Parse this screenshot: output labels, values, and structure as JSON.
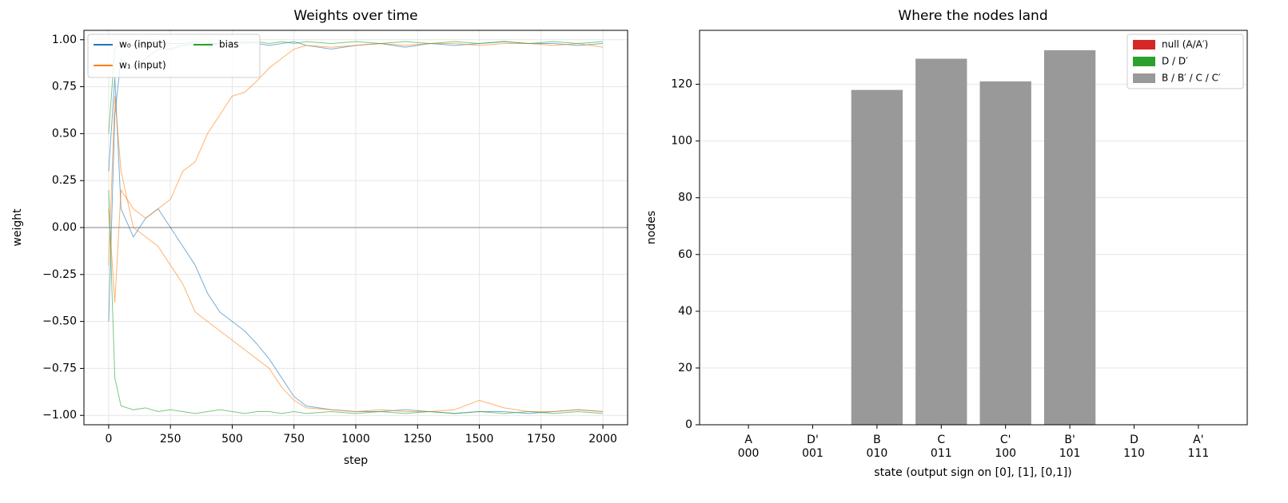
{
  "chart_data": [
    {
      "type": "line",
      "title": "Weights over time",
      "xlabel": "step",
      "ylabel": "weight",
      "x": [
        0,
        25,
        50,
        100,
        150,
        200,
        250,
        300,
        350,
        400,
        450,
        500,
        550,
        600,
        650,
        700,
        750,
        800,
        900,
        1000,
        1100,
        1200,
        1300,
        1400,
        1500,
        1600,
        1700,
        1800,
        1900,
        2000
      ],
      "series": [
        {
          "name": "w₀ (input)",
          "color": "#1f77b4",
          "values": [
            0.3,
            0.8,
            0.1,
            -0.05,
            0.05,
            0.1,
            0.0,
            -0.1,
            -0.2,
            -0.35,
            -0.45,
            -0.5,
            -0.55,
            -0.62,
            -0.7,
            -0.8,
            -0.9,
            -0.95,
            -0.97,
            -0.98,
            -0.98,
            -0.97,
            -0.98,
            -0.99,
            -0.98,
            -0.98,
            -0.99,
            -0.98,
            -0.97,
            -0.98
          ]
        },
        {
          "name": "w₀ (input)",
          "color": "#1f77b4",
          "values": [
            -0.5,
            0.6,
            0.9,
            0.85,
            0.9,
            0.95,
            0.95,
            0.97,
            0.98,
            0.97,
            0.98,
            0.98,
            0.99,
            0.98,
            0.97,
            0.98,
            0.99,
            0.97,
            0.95,
            0.97,
            0.98,
            0.96,
            0.98,
            0.97,
            0.98,
            0.99,
            0.98,
            0.98,
            0.97,
            0.98
          ]
        },
        {
          "name": "w₁ (input)",
          "color": "#ff7f0e",
          "values": [
            0.1,
            -0.4,
            0.2,
            0.1,
            0.05,
            0.1,
            0.15,
            0.3,
            0.35,
            0.5,
            0.6,
            0.7,
            0.72,
            0.78,
            0.85,
            0.9,
            0.95,
            0.97,
            0.96,
            0.97,
            0.98,
            0.97,
            0.98,
            0.98,
            0.97,
            0.98,
            0.98,
            0.97,
            0.98,
            0.96
          ]
        },
        {
          "name": "w₁ (input)",
          "color": "#ff7f0e",
          "values": [
            -0.2,
            0.7,
            0.3,
            0.0,
            -0.05,
            -0.1,
            -0.2,
            -0.3,
            -0.45,
            -0.5,
            -0.55,
            -0.6,
            -0.65,
            -0.7,
            -0.75,
            -0.85,
            -0.92,
            -0.96,
            -0.97,
            -0.98,
            -0.97,
            -0.98,
            -0.98,
            -0.97,
            -0.92,
            -0.96,
            -0.98,
            -0.98,
            -0.97,
            -0.98
          ]
        },
        {
          "name": "bias",
          "color": "#2ca02c",
          "values": [
            0.5,
            0.95,
            0.98,
            0.97,
            0.98,
            0.99,
            0.98,
            0.98,
            0.99,
            0.98,
            0.98,
            0.99,
            0.98,
            0.99,
            0.98,
            0.99,
            0.98,
            0.99,
            0.98,
            0.99,
            0.98,
            0.99,
            0.98,
            0.99,
            0.98,
            0.99,
            0.98,
            0.99,
            0.98,
            0.99
          ]
        },
        {
          "name": "bias",
          "color": "#2ca02c",
          "values": [
            0.2,
            -0.8,
            -0.95,
            -0.97,
            -0.96,
            -0.98,
            -0.97,
            -0.98,
            -0.99,
            -0.98,
            -0.97,
            -0.98,
            -0.99,
            -0.98,
            -0.98,
            -0.99,
            -0.98,
            -0.99,
            -0.98,
            -0.99,
            -0.98,
            -0.99,
            -0.98,
            -0.99,
            -0.98,
            -0.99,
            -0.98,
            -0.99,
            -0.98,
            -0.99
          ]
        }
      ],
      "hline": 0,
      "xlim": [
        -100,
        2100
      ],
      "xticks": [
        0,
        250,
        500,
        750,
        1000,
        1250,
        1500,
        1750,
        2000
      ],
      "ylim": [
        -1.05,
        1.05
      ],
      "yticks": [
        {
          "value": -1,
          "label": "−1.00"
        },
        {
          "value": -0.75,
          "label": "−0.75"
        },
        {
          "value": -0.5,
          "label": "−0.50"
        },
        {
          "value": -0.25,
          "label": "−0.25"
        },
        {
          "value": 0,
          "label": "0.00"
        },
        {
          "value": 0.25,
          "label": "0.25"
        },
        {
          "value": 0.5,
          "label": "0.50"
        },
        {
          "value": 0.75,
          "label": "0.75"
        },
        {
          "value": 1,
          "label": "1.00"
        }
      ],
      "grid": true,
      "legend": "upper-left"
    },
    {
      "type": "bar",
      "title": "Where the nodes land",
      "xlabel": "state   (output sign on  [0], [1], [0,1])",
      "ylabel": "nodes",
      "categories": [
        "A",
        "D'",
        "B",
        "C",
        "C'",
        "B'",
        "D",
        "A'"
      ],
      "codes": [
        "000",
        "001",
        "010",
        "011",
        "100",
        "101",
        "110",
        "111"
      ],
      "values": [
        0,
        0,
        118,
        129,
        121,
        132,
        0,
        0
      ],
      "color": "#999999",
      "ylim": [
        0,
        139
      ],
      "yticks": [
        0,
        20,
        40,
        60,
        80,
        100,
        120
      ],
      "grid": true,
      "legend": "upper-right",
      "legend_entries": [
        {
          "name": "null (A/A′)",
          "color": "#d62728"
        },
        {
          "name": "D / D′",
          "color": "#2ca02c"
        },
        {
          "name": "B / B′ / C / C′",
          "color": "#999999"
        }
      ]
    }
  ]
}
